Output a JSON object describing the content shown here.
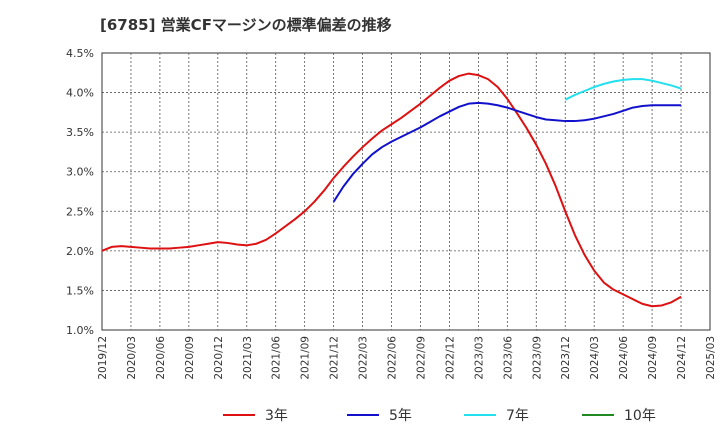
{
  "title": "[6785]  営業CFマージンの標準偏差の推移",
  "chart_data": {
    "type": "line",
    "title": "[6785]  営業CFマージンの標準偏差の推移",
    "xlabel": "",
    "ylabel": "",
    "ylim": [
      1.0,
      4.5
    ],
    "y_ticks": [
      "1.0%",
      "1.5%",
      "2.0%",
      "2.5%",
      "3.0%",
      "3.5%",
      "4.0%",
      "4.5%"
    ],
    "x_ticks": [
      "2019/12",
      "2020/03",
      "2020/06",
      "2020/09",
      "2020/12",
      "2021/03",
      "2021/06",
      "2021/09",
      "2021/12",
      "2022/03",
      "2022/06",
      "2022/09",
      "2022/12",
      "2023/03",
      "2023/06",
      "2023/09",
      "2023/12",
      "2024/03",
      "2024/06",
      "2024/09",
      "2024/12",
      "2025/03"
    ],
    "grid": true,
    "legend_position": "bottom",
    "series": [
      {
        "name": "3年",
        "color": "#dd1111",
        "x": [
          "2019/12",
          "2020/01",
          "2020/02",
          "2020/03",
          "2020/04",
          "2020/05",
          "2020/06",
          "2020/07",
          "2020/08",
          "2020/09",
          "2020/10",
          "2020/11",
          "2020/12",
          "2021/01",
          "2021/02",
          "2021/03",
          "2021/04",
          "2021/05",
          "2021/06",
          "2021/07",
          "2021/08",
          "2021/09",
          "2021/10",
          "2021/11",
          "2021/12",
          "2022/01",
          "2022/02",
          "2022/03",
          "2022/04",
          "2022/05",
          "2022/06",
          "2022/07",
          "2022/08",
          "2022/09",
          "2022/10",
          "2022/11",
          "2022/12",
          "2023/01",
          "2023/02",
          "2023/03",
          "2023/04",
          "2023/05",
          "2023/06",
          "2023/07",
          "2023/08",
          "2023/09",
          "2023/10",
          "2023/11",
          "2023/12",
          "2024/01",
          "2024/02",
          "2024/03",
          "2024/04",
          "2024/05",
          "2024/06",
          "2024/07",
          "2024/08",
          "2024/09",
          "2024/10",
          "2024/11",
          "2024/12"
        ],
        "values": [
          2.0,
          2.05,
          2.06,
          2.05,
          2.04,
          2.03,
          2.03,
          2.03,
          2.04,
          2.05,
          2.07,
          2.09,
          2.11,
          2.1,
          2.08,
          2.07,
          2.09,
          2.14,
          2.22,
          2.31,
          2.4,
          2.5,
          2.62,
          2.76,
          2.92,
          3.06,
          3.19,
          3.31,
          3.42,
          3.52,
          3.6,
          3.68,
          3.77,
          3.86,
          3.96,
          4.06,
          4.15,
          4.21,
          4.24,
          4.22,
          4.17,
          4.07,
          3.92,
          3.74,
          3.55,
          3.34,
          3.1,
          2.82,
          2.5,
          2.2,
          1.95,
          1.75,
          1.6,
          1.51,
          1.45,
          1.39,
          1.33,
          1.3,
          1.31,
          1.35,
          1.42
        ]
      },
      {
        "name": "5年",
        "color": "#1111cc",
        "x": [
          "2021/12",
          "2022/01",
          "2022/02",
          "2022/03",
          "2022/04",
          "2022/05",
          "2022/06",
          "2022/07",
          "2022/08",
          "2022/09",
          "2022/10",
          "2022/11",
          "2022/12",
          "2023/01",
          "2023/02",
          "2023/03",
          "2023/04",
          "2023/05",
          "2023/06",
          "2023/07",
          "2023/08",
          "2023/09",
          "2023/10",
          "2023/11",
          "2023/12",
          "2024/01",
          "2024/02",
          "2024/03",
          "2024/04",
          "2024/05",
          "2024/06",
          "2024/07",
          "2024/08",
          "2024/09",
          "2024/10",
          "2024/11",
          "2024/12"
        ],
        "values": [
          2.62,
          2.81,
          2.97,
          3.1,
          3.22,
          3.31,
          3.38,
          3.44,
          3.5,
          3.56,
          3.63,
          3.7,
          3.76,
          3.82,
          3.86,
          3.87,
          3.86,
          3.84,
          3.81,
          3.77,
          3.73,
          3.69,
          3.66,
          3.65,
          3.64,
          3.64,
          3.65,
          3.67,
          3.7,
          3.73,
          3.77,
          3.81,
          3.83,
          3.84,
          3.84,
          3.84,
          3.84
        ]
      },
      {
        "name": "7年",
        "color": "#22e0ee",
        "x": [
          "2023/12",
          "2024/01",
          "2024/02",
          "2024/03",
          "2024/04",
          "2024/05",
          "2024/06",
          "2024/07",
          "2024/08",
          "2024/09",
          "2024/10",
          "2024/11",
          "2024/12"
        ],
        "values": [
          3.91,
          3.97,
          4.02,
          4.07,
          4.11,
          4.14,
          4.16,
          4.17,
          4.17,
          4.15,
          4.12,
          4.09,
          4.05
        ]
      },
      {
        "name": "10年",
        "color": "#228822",
        "x": [],
        "values": []
      }
    ]
  }
}
